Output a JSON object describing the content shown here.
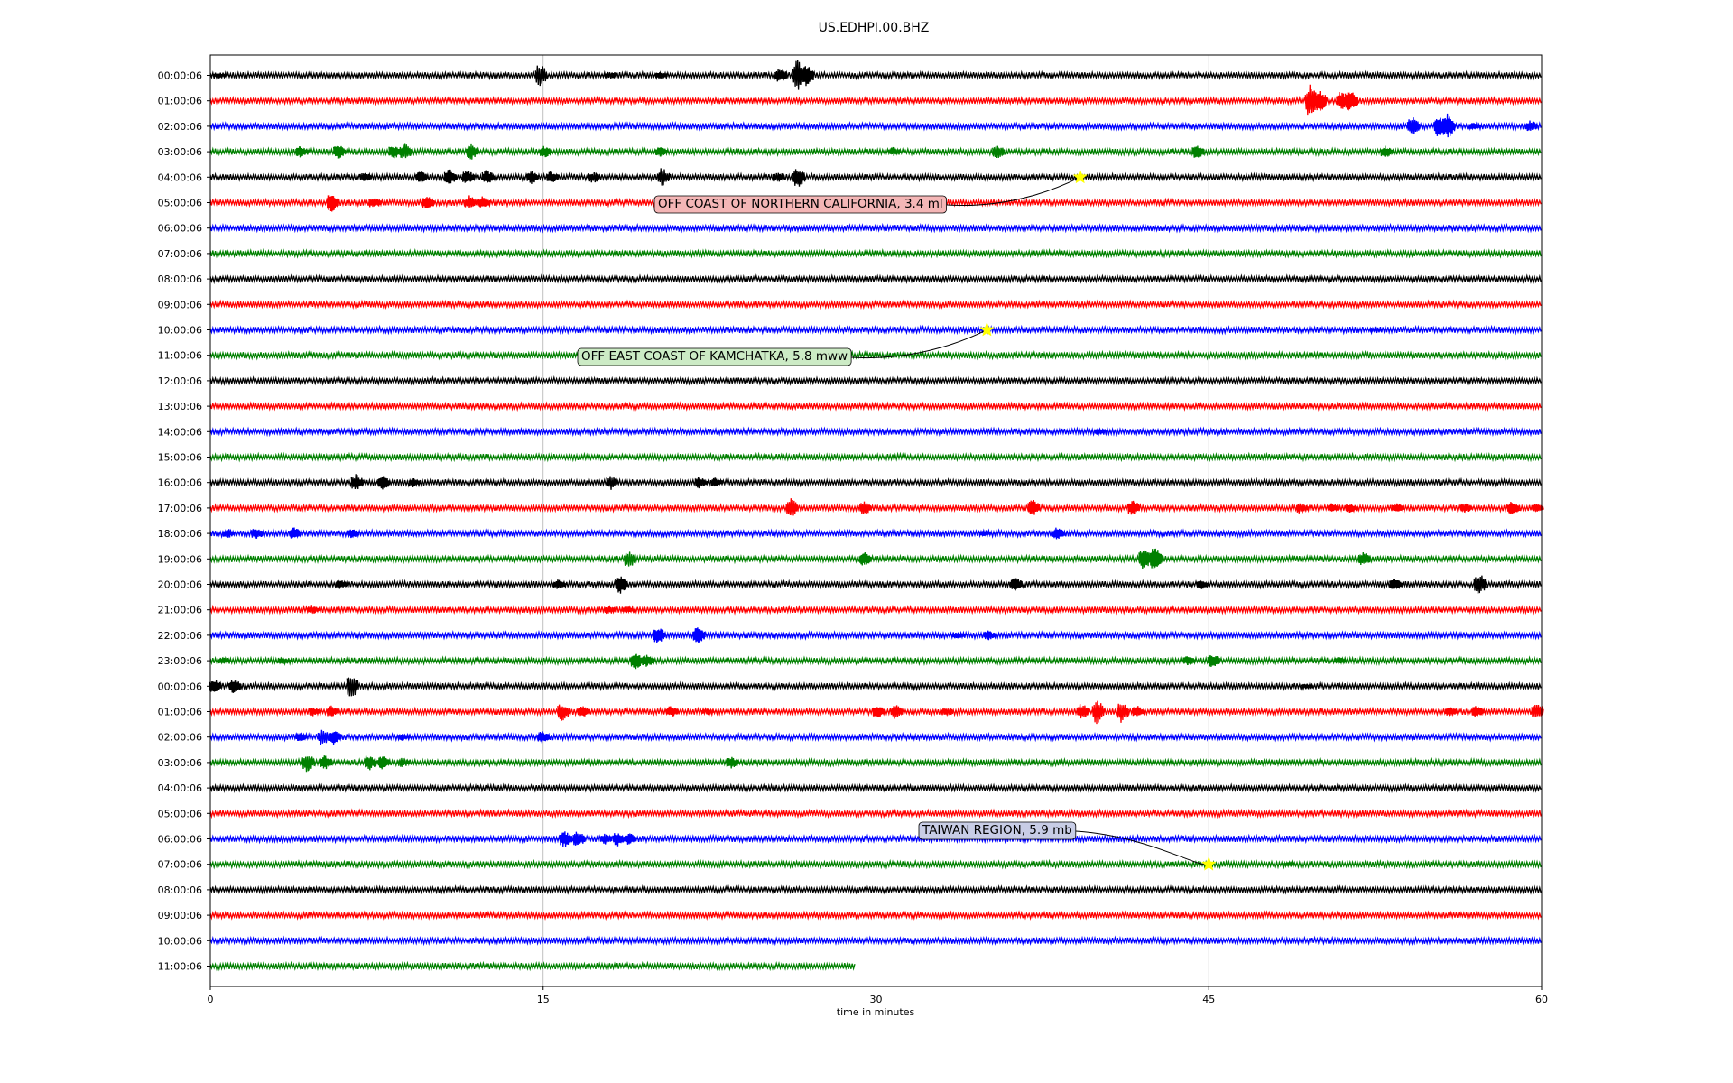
{
  "chart_data": {
    "type": "line",
    "title": "US.EDHPI.00.BHZ",
    "xlabel": "time in minutes",
    "ylabel": "",
    "xlim": [
      0,
      60
    ],
    "x_ticks": [
      "0",
      "15",
      "30",
      "45",
      "60"
    ],
    "x_tick_values": [
      0,
      15,
      30,
      45,
      60
    ],
    "grid": "vertical lines at x ticks",
    "row_minutes": 60,
    "color_cycle": [
      "#000000",
      "#ff0000",
      "#0000ff",
      "#008000"
    ],
    "rows": [
      {
        "label": "00:00:06",
        "color": "#000000",
        "end_minute": 60,
        "events": [
          [
            14.9,
            1.0
          ],
          [
            26.5,
            1.3
          ],
          [
            26.9,
            0.9
          ],
          [
            25.7,
            0.6
          ],
          [
            0.4,
            0.2
          ],
          [
            18.0,
            0.3
          ],
          [
            20.3,
            0.3
          ]
        ]
      },
      {
        "label": "01:00:06",
        "color": "#ff0000",
        "end_minute": 60,
        "events": [
          [
            49.6,
            1.4
          ],
          [
            50.0,
            1.0
          ],
          [
            51.0,
            0.8
          ],
          [
            51.4,
            0.9
          ]
        ]
      },
      {
        "label": "02:00:06",
        "color": "#0000ff",
        "end_minute": 60,
        "events": [
          [
            54.2,
            0.8
          ],
          [
            55.4,
            0.9
          ],
          [
            55.8,
            1.0
          ],
          [
            59.5,
            0.5
          ],
          [
            57.0,
            0.3
          ]
        ]
      },
      {
        "label": "03:00:06",
        "color": "#008000",
        "end_minute": 60,
        "events": [
          [
            4.1,
            0.5
          ],
          [
            5.8,
            0.6
          ],
          [
            8.3,
            0.6
          ],
          [
            8.8,
            0.7
          ],
          [
            11.8,
            0.7
          ],
          [
            15.1,
            0.5
          ],
          [
            20.3,
            0.4
          ],
          [
            30.8,
            0.4
          ],
          [
            35.5,
            0.6
          ],
          [
            44.5,
            0.6
          ],
          [
            53.0,
            0.5
          ]
        ]
      },
      {
        "label": "04:00:06",
        "color": "#000000",
        "end_minute": 60,
        "events": [
          [
            7.0,
            0.4
          ],
          [
            9.5,
            0.5
          ],
          [
            10.8,
            0.7
          ],
          [
            11.6,
            0.6
          ],
          [
            12.5,
            0.6
          ],
          [
            14.5,
            0.6
          ],
          [
            15.4,
            0.5
          ],
          [
            17.3,
            0.5
          ],
          [
            20.4,
            0.8
          ],
          [
            25.6,
            0.5
          ],
          [
            26.5,
            0.9
          ]
        ]
      },
      {
        "label": "05:00:06",
        "color": "#ff0000",
        "end_minute": 60,
        "events": [
          [
            5.5,
            0.8
          ],
          [
            7.4,
            0.5
          ],
          [
            9.8,
            0.6
          ],
          [
            11.7,
            0.6
          ],
          [
            12.3,
            0.5
          ]
        ]
      },
      {
        "label": "06:00:06",
        "color": "#0000ff",
        "end_minute": 60,
        "events": []
      },
      {
        "label": "07:00:06",
        "color": "#008000",
        "end_minute": 60,
        "events": []
      },
      {
        "label": "08:00:06",
        "color": "#000000",
        "end_minute": 60,
        "events": []
      },
      {
        "label": "09:00:06",
        "color": "#ff0000",
        "end_minute": 60,
        "events": []
      },
      {
        "label": "10:00:06",
        "color": "#0000ff",
        "end_minute": 60,
        "events": [
          [
            52.5,
            0.2
          ]
        ]
      },
      {
        "label": "11:00:06",
        "color": "#008000",
        "end_minute": 60,
        "events": []
      },
      {
        "label": "12:00:06",
        "color": "#000000",
        "end_minute": 60,
        "events": []
      },
      {
        "label": "13:00:06",
        "color": "#ff0000",
        "end_minute": 60,
        "events": []
      },
      {
        "label": "14:00:06",
        "color": "#0000ff",
        "end_minute": 60,
        "events": [
          [
            40.1,
            0.3
          ]
        ]
      },
      {
        "label": "15:00:06",
        "color": "#008000",
        "end_minute": 60,
        "events": []
      },
      {
        "label": "16:00:06",
        "color": "#000000",
        "end_minute": 60,
        "events": [
          [
            6.6,
            0.7
          ],
          [
            7.8,
            0.6
          ],
          [
            9.2,
            0.4
          ],
          [
            18.1,
            0.6
          ],
          [
            22.1,
            0.5
          ],
          [
            22.8,
            0.4
          ]
        ]
      },
      {
        "label": "17:00:06",
        "color": "#ff0000",
        "end_minute": 60,
        "events": [
          [
            26.2,
            0.8
          ],
          [
            29.5,
            0.6
          ],
          [
            37.1,
            0.7
          ],
          [
            41.6,
            0.7
          ],
          [
            49.2,
            0.5
          ],
          [
            50.6,
            0.4
          ],
          [
            51.4,
            0.4
          ],
          [
            53.5,
            0.4
          ],
          [
            56.6,
            0.4
          ],
          [
            58.7,
            0.6
          ],
          [
            59.8,
            0.4
          ]
        ]
      },
      {
        "label": "18:00:06",
        "color": "#0000ff",
        "end_minute": 60,
        "events": [
          [
            0.8,
            0.4
          ],
          [
            2.1,
            0.5
          ],
          [
            3.8,
            0.5
          ],
          [
            6.4,
            0.4
          ],
          [
            34.9,
            0.3
          ],
          [
            38.2,
            0.5
          ]
        ]
      },
      {
        "label": "19:00:06",
        "color": "#008000",
        "end_minute": 60,
        "events": [
          [
            18.9,
            0.8
          ],
          [
            29.5,
            0.6
          ],
          [
            42.1,
            0.9
          ],
          [
            42.6,
            1.0
          ],
          [
            52.0,
            0.6
          ]
        ]
      },
      {
        "label": "20:00:06",
        "color": "#000000",
        "end_minute": 60,
        "events": [
          [
            5.9,
            0.4
          ],
          [
            15.7,
            0.4
          ],
          [
            18.5,
            0.8
          ],
          [
            36.3,
            0.6
          ],
          [
            44.7,
            0.4
          ],
          [
            53.4,
            0.5
          ],
          [
            57.2,
            1.0
          ]
        ]
      },
      {
        "label": "21:00:06",
        "color": "#ff0000",
        "end_minute": 60,
        "events": [
          [
            4.6,
            0.4
          ],
          [
            18.0,
            0.4
          ],
          [
            18.8,
            0.3
          ]
        ]
      },
      {
        "label": "22:00:06",
        "color": "#0000ff",
        "end_minute": 60,
        "events": [
          [
            20.2,
            0.7
          ],
          [
            22.0,
            0.7
          ],
          [
            33.7,
            0.3
          ],
          [
            35.1,
            0.4
          ]
        ]
      },
      {
        "label": "23:00:06",
        "color": "#008000",
        "end_minute": 60,
        "events": [
          [
            0.6,
            0.3
          ],
          [
            3.3,
            0.3
          ],
          [
            19.2,
            0.7
          ],
          [
            19.7,
            0.5
          ],
          [
            44.1,
            0.4
          ],
          [
            45.2,
            0.6
          ],
          [
            50.9,
            0.3
          ]
        ]
      },
      {
        "label": "00:00:06",
        "color": "#000000",
        "end_minute": 60,
        "events": [
          [
            0.2,
            0.6
          ],
          [
            1.1,
            0.6
          ],
          [
            6.4,
            1.1
          ],
          [
            49.4,
            0.2
          ]
        ]
      },
      {
        "label": "01:00:06",
        "color": "#ff0000",
        "end_minute": 60,
        "events": [
          [
            4.7,
            0.4
          ],
          [
            5.5,
            0.5
          ],
          [
            15.9,
            0.8
          ],
          [
            16.8,
            0.5
          ],
          [
            20.8,
            0.5
          ],
          [
            22.4,
            0.3
          ],
          [
            30.1,
            0.6
          ],
          [
            30.9,
            0.6
          ],
          [
            33.2,
            0.4
          ],
          [
            39.3,
            0.7
          ],
          [
            40.0,
            1.0
          ],
          [
            41.1,
            0.9
          ],
          [
            41.8,
            0.5
          ],
          [
            55.9,
            0.4
          ],
          [
            57.1,
            0.5
          ],
          [
            59.8,
            0.8
          ]
        ]
      },
      {
        "label": "02:00:06",
        "color": "#0000ff",
        "end_minute": 60,
        "events": [
          [
            4.1,
            0.4
          ],
          [
            5.1,
            0.7
          ],
          [
            5.6,
            0.6
          ],
          [
            8.7,
            0.3
          ],
          [
            15.0,
            0.5
          ]
        ]
      },
      {
        "label": "03:00:06",
        "color": "#008000",
        "end_minute": 60,
        "events": [
          [
            4.4,
            0.8
          ],
          [
            5.2,
            0.6
          ],
          [
            7.2,
            0.7
          ],
          [
            7.8,
            0.6
          ],
          [
            8.7,
            0.4
          ],
          [
            23.5,
            0.5
          ]
        ]
      },
      {
        "label": "04:00:06",
        "color": "#000000",
        "end_minute": 60,
        "events": []
      },
      {
        "label": "05:00:06",
        "color": "#ff0000",
        "end_minute": 60,
        "events": []
      },
      {
        "label": "06:00:06",
        "color": "#0000ff",
        "end_minute": 60,
        "events": [
          [
            16.0,
            0.7
          ],
          [
            16.6,
            0.7
          ],
          [
            17.8,
            0.5
          ],
          [
            18.4,
            0.6
          ],
          [
            18.9,
            0.5
          ]
        ]
      },
      {
        "label": "07:00:06",
        "color": "#008000",
        "end_minute": 60,
        "events": [
          [
            48.6,
            0.2
          ]
        ]
      },
      {
        "label": "08:00:06",
        "color": "#000000",
        "end_minute": 60,
        "events": []
      },
      {
        "label": "09:00:06",
        "color": "#ff0000",
        "end_minute": 60,
        "events": []
      },
      {
        "label": "10:00:06",
        "color": "#0000ff",
        "end_minute": 60,
        "events": []
      },
      {
        "label": "11:00:06",
        "color": "#008000",
        "end_minute": 29.1,
        "events": []
      }
    ],
    "annotations": [
      {
        "text": "OFF COAST OF NORTHERN CALIFORNIA, 3.4 ml",
        "row": 4,
        "minute": 39.2,
        "marker": "star",
        "marker_color": "#ffff00",
        "box_color": "#f4b6b6"
      },
      {
        "text": "OFF EAST COAST OF KAMCHATKA, 5.8 mww",
        "row": 10,
        "minute": 35.0,
        "marker": "star",
        "marker_color": "#ffff00",
        "box_color": "#ccebc5"
      },
      {
        "text": "TAIWAN REGION, 5.9 mb",
        "row": 31,
        "minute": 45.0,
        "marker": "star",
        "marker_color": "#ffff00",
        "box_color": "#c8cde6"
      }
    ]
  }
}
